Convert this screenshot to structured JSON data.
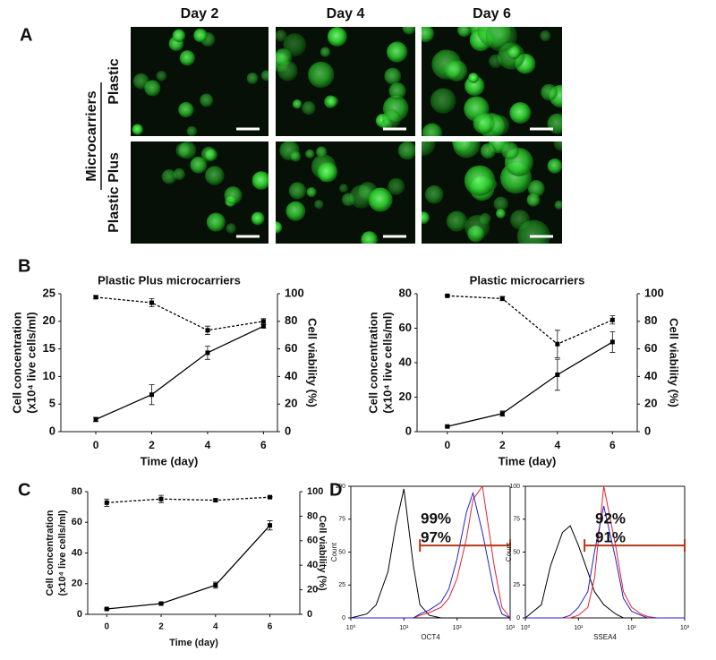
{
  "panel_labels": [
    "A",
    "B",
    "C",
    "D"
  ],
  "panel_a": {
    "columns": [
      "Day 2",
      "Day 4",
      "Day 6"
    ],
    "group_label": "Microcarriers",
    "rows": [
      "Plastic",
      "Plastic Plus"
    ]
  },
  "chart_data": [
    {
      "type": "line",
      "title": "Plastic Plus microcarriers",
      "xlabel": "Time (day)",
      "ylabel": [
        "Cell concentration",
        "(x10⁴ live cells/ml)"
      ],
      "y2label": "Cell viability (%)",
      "x": [
        0,
        2,
        4,
        6
      ],
      "xlim": [
        -1.25,
        6.5
      ],
      "xticks": [
        0,
        2,
        4,
        6
      ],
      "ylim": [
        0,
        25
      ],
      "yticks": [
        0,
        5,
        10,
        15,
        20,
        25
      ],
      "y2lim": [
        0,
        100
      ],
      "y2ticks": [
        0,
        20,
        40,
        60,
        80,
        100
      ],
      "series": [
        {
          "color": "#000000",
          "line_style": "solid",
          "values": [
            2.2,
            6.7,
            14.3,
            19.1
          ],
          "errors": [
            0.4,
            1.8,
            1.2,
            0.3
          ]
        },
        {
          "color": "#000000",
          "line_style": "dashed",
          "axis": "y2",
          "values": [
            97.5,
            93.5,
            73.5,
            80
          ],
          "errors": [
            1,
            3,
            3,
            2
          ]
        }
      ]
    },
    {
      "type": "line",
      "title": "Plastic microcarriers",
      "xlabel": "Time (day)",
      "ylabel": [
        "Cell concentration",
        "(x10⁴ live cells/ml)"
      ],
      "y2label": "Cell viability (%)",
      "x": [
        0,
        2,
        4,
        6
      ],
      "xlim": [
        -1.1,
        6.9
      ],
      "xticks": [
        0,
        2,
        4,
        6
      ],
      "ylim": [
        0,
        80
      ],
      "yticks": [
        0,
        20,
        40,
        60,
        80
      ],
      "y2lim": [
        0,
        100
      ],
      "y2ticks": [
        0,
        20,
        40,
        60,
        80,
        100
      ],
      "series": [
        {
          "color": "#000000",
          "line_style": "solid",
          "values": [
            3,
            10.5,
            33,
            52
          ],
          "errors": [
            0.5,
            1.5,
            9,
            6
          ]
        },
        {
          "color": "#000000",
          "line_style": "dashed",
          "axis": "y2",
          "values": [
            98.5,
            96.5,
            63.5,
            81
          ],
          "errors": [
            0.5,
            1.5,
            10,
            3
          ]
        }
      ]
    },
    {
      "type": "line",
      "xlabel": "Time (day)",
      "ylabel": [
        "Cell concentration",
        "(x10⁴ live cells/ml)"
      ],
      "y2label": "Cell viability (%)",
      "x": [
        0,
        2,
        4,
        6
      ],
      "xlim": [
        -0.7,
        7.1
      ],
      "xticks": [
        0,
        2,
        4,
        6
      ],
      "ylim": [
        0,
        80
      ],
      "yticks": [
        0,
        20,
        40,
        60,
        80
      ],
      "y2lim": [
        0,
        100
      ],
      "y2ticks": [
        0,
        20,
        40,
        60,
        80,
        100
      ],
      "series": [
        {
          "color": "#000000",
          "line_style": "solid",
          "values": [
            3.5,
            7,
            19,
            58
          ],
          "errors": [
            0.5,
            0.5,
            2,
            3
          ]
        },
        {
          "color": "#000000",
          "line_style": "dashed",
          "axis": "y2",
          "values": [
            91,
            94,
            93,
            95.5
          ],
          "errors": [
            3,
            3,
            1,
            0.5
          ]
        }
      ]
    },
    {
      "type": "line",
      "xscale": "log",
      "xlabel": "OCT4",
      "ylabel": [
        "Count"
      ],
      "x": [
        1,
        2,
        3,
        5,
        7,
        10,
        15,
        20,
        30,
        50,
        70,
        100,
        150,
        200,
        300,
        500,
        700,
        1000
      ],
      "xlim": [
        1,
        1000
      ],
      "xticks": [
        {
          "value": 1,
          "label": "10⁰"
        },
        {
          "value": 10,
          "label": "10¹"
        },
        {
          "value": 100,
          "label": "10²"
        },
        {
          "value": 1000,
          "label": "10³"
        }
      ],
      "ylim": [
        0,
        100
      ],
      "yticks": [
        0,
        25,
        50,
        75,
        100
      ],
      "series": [
        {
          "color": "#000000",
          "values": [
            0,
            3,
            10,
            35,
            70,
            98,
            40,
            10,
            2,
            0,
            0,
            0,
            0,
            0,
            0,
            0,
            0,
            0
          ]
        },
        {
          "color": "#e8202a",
          "values": [
            0,
            0,
            0,
            0,
            0,
            0,
            0,
            2,
            4,
            8,
            15,
            30,
            60,
            90,
            100,
            40,
            8,
            0
          ]
        },
        {
          "color": "#2020d0",
          "values": [
            0,
            0,
            0,
            0,
            0,
            0,
            0,
            3,
            6,
            12,
            22,
            45,
            80,
            95,
            65,
            20,
            3,
            0
          ]
        }
      ],
      "annotations": [
        {
          "text": "99%",
          "color": "#e8202a"
        },
        {
          "text": "97%",
          "color": "#2020d0"
        }
      ],
      "gate": {
        "x": [
          20,
          1000
        ],
        "y": 55,
        "color": "#b5381a"
      }
    },
    {
      "type": "line",
      "xscale": "log",
      "xlabel": "SSEA4",
      "ylabel": [
        "Count"
      ],
      "x": [
        1,
        2,
        3,
        5,
        7,
        10,
        15,
        20,
        30,
        50,
        70,
        100,
        150,
        200,
        300,
        500,
        700,
        1000
      ],
      "xlim": [
        1,
        1000
      ],
      "xticks": [
        {
          "value": 1,
          "label": "10⁰"
        },
        {
          "value": 10,
          "label": "10¹"
        },
        {
          "value": 100,
          "label": "10²"
        },
        {
          "value": 1000,
          "label": "10³"
        }
      ],
      "ylim": [
        0,
        100
      ],
      "yticks": [
        0,
        25,
        50,
        75,
        100
      ],
      "series": [
        {
          "color": "#000000",
          "values": [
            0,
            10,
            40,
            65,
            70,
            55,
            35,
            20,
            10,
            3,
            0,
            0,
            0,
            0,
            0,
            0,
            0,
            0
          ]
        },
        {
          "color": "#e8202a",
          "values": [
            0,
            0,
            0,
            0,
            0,
            2,
            8,
            30,
            100,
            55,
            20,
            8,
            3,
            1,
            0,
            0,
            0,
            0
          ]
        },
        {
          "color": "#2020d0",
          "values": [
            0,
            0,
            0,
            0,
            2,
            8,
            20,
            50,
            85,
            45,
            15,
            5,
            2,
            0,
            0,
            0,
            0,
            0
          ]
        }
      ],
      "annotations": [
        {
          "text": "92%",
          "color": "#e8202a"
        },
        {
          "text": "91%",
          "color": "#2020d0"
        }
      ],
      "gate": {
        "x": [
          13,
          1000
        ],
        "y": 55,
        "color": "#b5381a"
      }
    }
  ]
}
